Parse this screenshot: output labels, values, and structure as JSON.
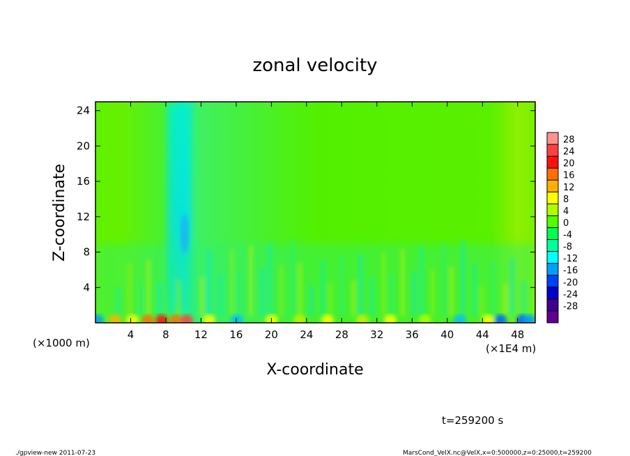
{
  "chart_data": {
    "type": "heatmap",
    "title": "zonal velocity",
    "xlabel": "X-coordinate",
    "ylabel": "Z-coordinate",
    "x_unit_left": "(×1000 m)",
    "x_unit_right": "(×1E4 m)",
    "xlim": [
      0,
      50
    ],
    "ylim": [
      0,
      25
    ],
    "x_ticks": [
      4,
      8,
      12,
      16,
      20,
      24,
      28,
      32,
      36,
      40,
      44,
      48
    ],
    "y_ticks": [
      4,
      8,
      12,
      16,
      20,
      24
    ],
    "colorbar_levels": [
      28,
      24,
      20,
      16,
      12,
      8,
      4,
      0,
      -4,
      -8,
      -12,
      -16,
      -20,
      -24,
      -28
    ],
    "colorbar_colors": [
      "#ff9090",
      "#ff4040",
      "#ff1010",
      "#ff7000",
      "#ffb000",
      "#ffff00",
      "#b0ff00",
      "#50ff00",
      "#00ff50",
      "#00ffa0",
      "#00ffff",
      "#00a0ff",
      "#0040ff",
      "#0000cc",
      "#400090",
      "#600090"
    ],
    "time_label": "t=259200 s"
  },
  "footer": {
    "left": "./gpview-new  2011-07-23",
    "right": "MarsCond_VelX.nc@VelX,x=0:500000,z=0:25000,t=259200"
  }
}
